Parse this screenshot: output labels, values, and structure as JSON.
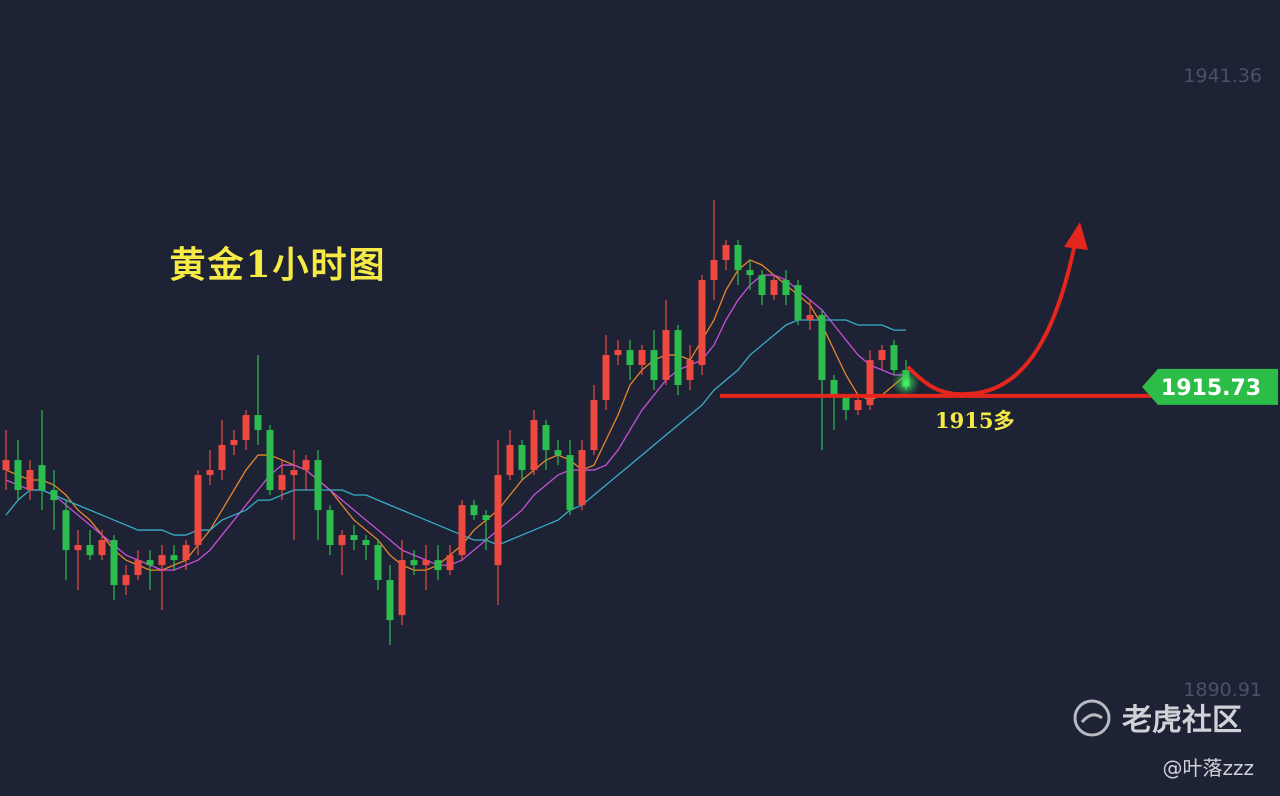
{
  "chart_data": {
    "type": "candlestick",
    "title": "黄金1小时图",
    "ylim": [
      1890.91,
      1941.36
    ],
    "yticks": [
      1941.36,
      1890.91
    ],
    "up_color": "#ee4a42",
    "down_color": "#2dbd4e",
    "open": [
      1908.9,
      1909.72,
      1907.26,
      1909.31,
      1907.26,
      1905.61,
      1902.32,
      1902.74,
      1901.91,
      1903.15,
      1899.45,
      1900.27,
      1901.5,
      1901.09,
      1901.91,
      1901.5,
      1902.74,
      1908.49,
      1908.9,
      1910.96,
      1911.37,
      1913.42,
      1912.19,
      1907.26,
      1908.49,
      1908.9,
      1909.72,
      1905.61,
      1902.74,
      1903.56,
      1903.15,
      1902.74,
      1899.86,
      1896.98,
      1901.5,
      1901.09,
      1901.5,
      1900.68,
      1901.91,
      1906.02,
      1905.2,
      1901.09,
      1908.49,
      1910.96,
      1908.9,
      1912.6,
      1910.54,
      1910.13,
      1906.02,
      1910.54,
      1914.65,
      1918.35,
      1918.76,
      1917.53,
      1918.76,
      1916.3,
      1920.4,
      1916.3,
      1917.53,
      1924.51,
      1926.16,
      1927.39,
      1925.33,
      1924.92,
      1923.28,
      1924.51,
      1924.1,
      1921.23,
      1921.64,
      1916.3,
      1915.06,
      1913.83,
      1914.24,
      1917.94,
      1919.17,
      1917.12
    ],
    "high": [
      1912.19,
      1911.37,
      1909.72,
      1913.83,
      1908.9,
      1906.43,
      1903.97,
      1903.97,
      1903.97,
      1903.56,
      1901.09,
      1902.32,
      1902.32,
      1902.74,
      1902.74,
      1903.15,
      1908.9,
      1910.54,
      1913.01,
      1912.19,
      1913.83,
      1918.35,
      1912.6,
      1909.72,
      1910.54,
      1910.13,
      1910.54,
      1906.02,
      1903.97,
      1904.38,
      1903.56,
      1903.15,
      1901.09,
      1903.15,
      1902.32,
      1902.74,
      1902.74,
      1902.74,
      1906.43,
      1906.43,
      1905.61,
      1911.37,
      1912.19,
      1911.37,
      1913.83,
      1913.01,
      1911.37,
      1911.37,
      1911.37,
      1915.89,
      1919.99,
      1919.58,
      1919.58,
      1919.17,
      1920.4,
      1922.87,
      1920.82,
      1919.17,
      1924.92,
      1931.09,
      1927.8,
      1927.8,
      1926.16,
      1925.33,
      1924.92,
      1925.33,
      1924.51,
      1922.87,
      1922.05,
      1916.71,
      1915.06,
      1915.06,
      1918.76,
      1919.17,
      1919.58,
      1917.94
    ],
    "low": [
      1907.26,
      1906.43,
      1906.43,
      1905.61,
      1903.97,
      1899.86,
      1899.04,
      1901.5,
      1901.5,
      1898.22,
      1898.63,
      1899.86,
      1899.04,
      1897.39,
      1900.68,
      1900.68,
      1901.91,
      1907.67,
      1908.08,
      1910.13,
      1910.54,
      1910.96,
      1906.85,
      1906.43,
      1903.15,
      1907.26,
      1903.15,
      1901.91,
      1900.27,
      1902.32,
      1901.5,
      1899.04,
      1894.52,
      1896.16,
      1900.27,
      1899.04,
      1899.86,
      1900.27,
      1901.5,
      1904.79,
      1902.32,
      1897.81,
      1908.08,
      1908.08,
      1908.49,
      1908.9,
      1909.31,
      1905.2,
      1905.61,
      1910.13,
      1913.83,
      1917.53,
      1916.3,
      1916.71,
      1915.47,
      1915.89,
      1915.06,
      1915.47,
      1916.71,
      1922.87,
      1925.33,
      1924.1,
      1923.69,
      1922.46,
      1922.87,
      1922.46,
      1920.82,
      1920.4,
      1910.54,
      1912.19,
      1913.01,
      1913.42,
      1913.83,
      1917.12,
      1916.71,
      1915.47
    ],
    "close": [
      1909.72,
      1907.26,
      1908.9,
      1907.26,
      1906.43,
      1902.32,
      1902.74,
      1901.91,
      1903.15,
      1899.45,
      1900.27,
      1901.5,
      1901.09,
      1901.91,
      1901.5,
      1902.74,
      1908.49,
      1908.9,
      1910.96,
      1911.37,
      1913.42,
      1912.19,
      1907.26,
      1908.49,
      1908.9,
      1909.72,
      1905.61,
      1902.74,
      1903.56,
      1903.15,
      1902.74,
      1899.86,
      1896.57,
      1901.5,
      1901.09,
      1901.5,
      1900.68,
      1901.91,
      1906.02,
      1905.2,
      1904.79,
      1908.49,
      1910.96,
      1908.9,
      1913.01,
      1910.54,
      1910.13,
      1905.61,
      1910.54,
      1914.65,
      1918.35,
      1918.76,
      1917.53,
      1918.76,
      1916.3,
      1920.4,
      1915.89,
      1917.94,
      1924.51,
      1926.16,
      1927.39,
      1925.33,
      1924.92,
      1923.28,
      1924.51,
      1923.28,
      1921.23,
      1921.64,
      1916.3,
      1915.06,
      1913.83,
      1914.65,
      1917.94,
      1918.76,
      1917.12,
      1915.73
    ],
    "moving_averages": [
      {
        "color": "#e8862b",
        "values": [
          1908.9,
          1908.49,
          1908.08,
          1908.08,
          1907.67,
          1906.85,
          1905.61,
          1904.79,
          1903.56,
          1902.32,
          1901.5,
          1901.09,
          1900.68,
          1900.68,
          1901.09,
          1901.5,
          1902.74,
          1903.97,
          1905.61,
          1907.26,
          1908.9,
          1910.13,
          1910.13,
          1909.72,
          1909.31,
          1908.9,
          1908.08,
          1907.26,
          1906.02,
          1904.79,
          1903.97,
          1903.15,
          1901.91,
          1901.09,
          1900.68,
          1900.68,
          1901.09,
          1901.91,
          1902.74,
          1903.97,
          1904.79,
          1905.61,
          1906.85,
          1908.08,
          1908.9,
          1909.72,
          1910.13,
          1909.72,
          1908.9,
          1909.31,
          1911.37,
          1913.42,
          1915.89,
          1917.12,
          1917.94,
          1918.35,
          1918.35,
          1917.94,
          1919.58,
          1921.23,
          1923.69,
          1925.33,
          1926.16,
          1925.75,
          1924.92,
          1924.1,
          1923.28,
          1922.46,
          1920.82,
          1918.76,
          1916.71,
          1915.06,
          1914.65,
          1915.06,
          1915.89,
          1916.71
        ]
      },
      {
        "color": "#c64fd8",
        "values": [
          1908.08,
          1907.67,
          1907.26,
          1907.26,
          1906.85,
          1906.02,
          1905.2,
          1904.38,
          1903.56,
          1902.74,
          1901.91,
          1901.5,
          1901.09,
          1900.68,
          1900.68,
          1901.09,
          1901.5,
          1902.32,
          1903.56,
          1904.79,
          1906.02,
          1907.26,
          1908.49,
          1909.31,
          1909.31,
          1908.9,
          1908.08,
          1907.26,
          1906.43,
          1905.61,
          1904.79,
          1903.97,
          1903.15,
          1902.32,
          1901.91,
          1901.5,
          1901.09,
          1901.09,
          1901.5,
          1902.32,
          1903.15,
          1903.97,
          1904.79,
          1905.61,
          1906.85,
          1907.67,
          1908.49,
          1908.9,
          1908.9,
          1908.9,
          1909.31,
          1910.54,
          1912.19,
          1913.83,
          1915.06,
          1916.3,
          1917.12,
          1917.53,
          1917.94,
          1919.17,
          1921.23,
          1922.87,
          1924.1,
          1924.92,
          1924.92,
          1924.51,
          1923.69,
          1922.87,
          1922.05,
          1920.82,
          1919.58,
          1918.35,
          1917.53,
          1917.12,
          1916.71,
          1916.71
        ]
      },
      {
        "color": "#38aec6",
        "values": [
          1905.2,
          1906.43,
          1907.26,
          1907.26,
          1906.85,
          1906.43,
          1906.02,
          1905.61,
          1905.2,
          1904.79,
          1904.38,
          1903.97,
          1903.97,
          1903.97,
          1903.56,
          1903.56,
          1903.97,
          1903.97,
          1904.79,
          1905.2,
          1905.61,
          1906.43,
          1906.43,
          1906.85,
          1907.26,
          1907.26,
          1907.26,
          1907.26,
          1907.26,
          1906.85,
          1906.85,
          1906.43,
          1906.02,
          1905.61,
          1905.2,
          1904.79,
          1904.38,
          1903.97,
          1903.56,
          1903.15,
          1903.15,
          1902.74,
          1903.15,
          1903.56,
          1903.97,
          1904.38,
          1904.79,
          1905.61,
          1906.02,
          1906.85,
          1907.67,
          1908.49,
          1909.31,
          1910.13,
          1910.96,
          1911.78,
          1912.6,
          1913.42,
          1914.24,
          1915.47,
          1916.3,
          1917.12,
          1918.35,
          1919.17,
          1919.99,
          1920.82,
          1921.23,
          1921.23,
          1921.23,
          1921.23,
          1921.23,
          1920.82,
          1920.82,
          1920.82,
          1920.4,
          1920.4
        ]
      }
    ],
    "support": {
      "value": 1915,
      "label": "1915多",
      "color": "#e5261d"
    },
    "last_price": 1915.73,
    "last_price_color": "#2cbd48"
  },
  "watermark": {
    "brand": "老虎社区",
    "author": "@叶落zzz"
  }
}
